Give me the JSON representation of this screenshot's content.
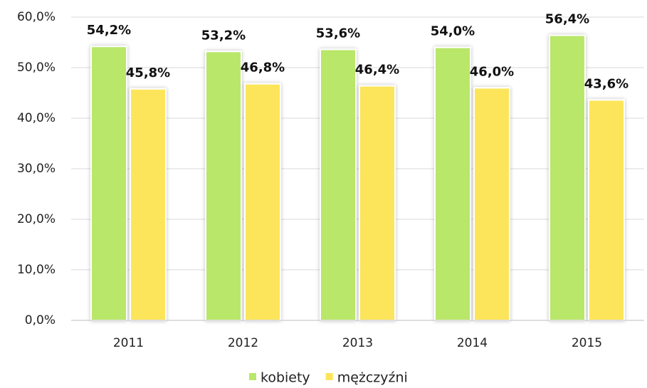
{
  "chart_data": {
    "type": "bar",
    "categories": [
      "2011",
      "2012",
      "2013",
      "2014",
      "2015"
    ],
    "series": [
      {
        "name": "kobiety",
        "color": "#b9e769",
        "values": [
          54.2,
          53.2,
          53.6,
          54.0,
          56.4
        ],
        "value_labels": [
          "54,2%",
          "53,2%",
          "53,6%",
          "54,0%",
          "56,4%"
        ]
      },
      {
        "name": "mężczyźni",
        "color": "#fce55a",
        "values": [
          45.8,
          46.8,
          46.4,
          46.0,
          43.6
        ],
        "value_labels": [
          "45,8%",
          "46,8%",
          "46,4%",
          "46,0%",
          "43,6%"
        ]
      }
    ],
    "ylim": [
      0,
      60
    ],
    "yticks": [
      {
        "value": 0,
        "label": "0,0%"
      },
      {
        "value": 10,
        "label": "10,0%"
      },
      {
        "value": 20,
        "label": "20,0%"
      },
      {
        "value": 30,
        "label": "30,0%"
      },
      {
        "value": 40,
        "label": "40,0%"
      },
      {
        "value": 50,
        "label": "50,0%"
      },
      {
        "value": 60,
        "label": "60,0%"
      }
    ],
    "grid": true,
    "legend": "bottom"
  }
}
